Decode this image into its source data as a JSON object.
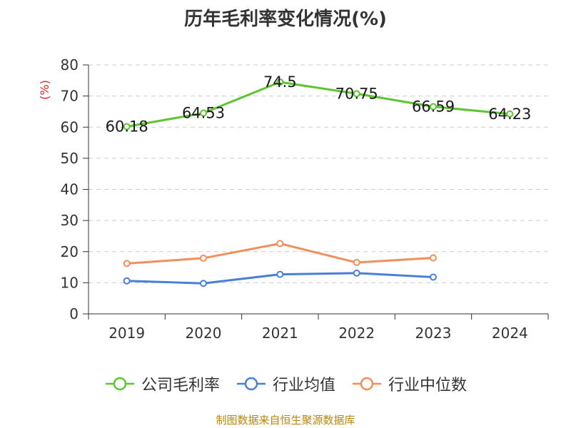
{
  "chart_data": {
    "type": "line",
    "title": "历年毛利率变化情况(%)",
    "ylabel": "(%)",
    "xlabel": "",
    "categories": [
      "2019",
      "2020",
      "2021",
      "2022",
      "2023",
      "2024"
    ],
    "ylim": [
      0,
      80
    ],
    "yticks": [
      "0",
      "10",
      "20",
      "30",
      "40",
      "50",
      "60",
      "70",
      "80"
    ],
    "grid": true,
    "legend_position": "bottom",
    "series": [
      {
        "name": "公司毛利率",
        "color": "#5cc530",
        "values": [
          60.18,
          64.53,
          74.5,
          70.75,
          66.59,
          64.23
        ],
        "labels": [
          "60.18",
          "64.53",
          "74.5",
          "70.75",
          "66.59",
          "64.23"
        ]
      },
      {
        "name": "行业均值",
        "color": "#4a7fd8",
        "values": [
          10.6,
          9.8,
          12.7,
          13.1,
          11.8,
          null
        ]
      },
      {
        "name": "行业中位数",
        "color": "#f28e5b",
        "values": [
          16.2,
          17.9,
          22.6,
          16.5,
          18.0,
          null
        ]
      }
    ]
  },
  "source": "制图数据来自恒生聚源数据库"
}
